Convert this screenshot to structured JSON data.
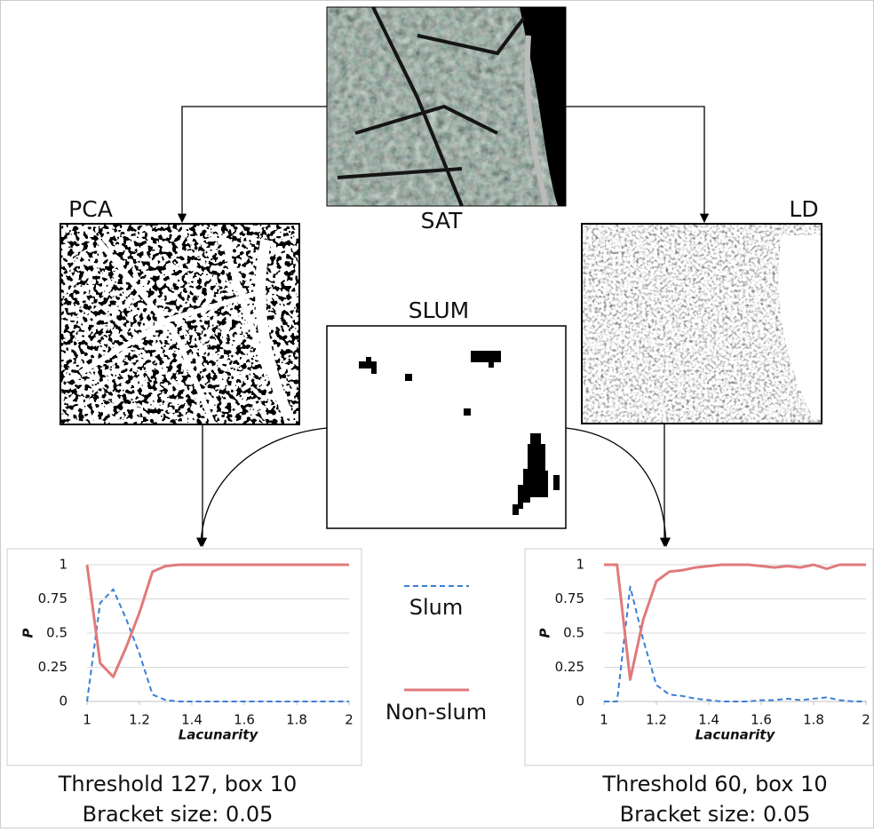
{
  "labels": {
    "sat": "SAT",
    "pca": "PCA",
    "ld": "LD",
    "slum": "SLUM"
  },
  "legend": [
    {
      "name": "Slum",
      "color": "#3a7fd5",
      "dashed": true
    },
    {
      "name": "Non-slum",
      "color": "#e07a7a",
      "dashed": false
    }
  ],
  "charts": [
    {
      "type": "line",
      "xlabel": "Lacunarity",
      "ylabel": "P",
      "caption": [
        "Threshold 127, box 10",
        "Bracket size: 0.05"
      ],
      "x": [
        1,
        1.05,
        1.1,
        1.15,
        1.2,
        1.25,
        1.3,
        1.35,
        1.4,
        1.45,
        1.5,
        1.55,
        1.6,
        1.65,
        1.7,
        1.75,
        1.8,
        1.85,
        1.9,
        1.95,
        2
      ],
      "xlim": [
        1,
        2
      ],
      "xticks": [
        1,
        1.2,
        1.4,
        1.6,
        1.8,
        2
      ],
      "ylim": [
        0,
        1
      ],
      "yticks": [
        0,
        0.25,
        0.5,
        0.75,
        1
      ],
      "grid": true,
      "series": [
        {
          "legend": 0,
          "values": [
            0,
            0.72,
            0.82,
            0.6,
            0.35,
            0.05,
            0.01,
            0,
            0,
            0,
            0,
            0,
            0,
            0,
            0,
            0,
            0,
            0,
            0,
            0,
            0
          ]
        },
        {
          "legend": 1,
          "values": [
            1,
            0.28,
            0.18,
            0.4,
            0.65,
            0.95,
            0.99,
            1,
            1,
            1,
            1,
            1,
            1,
            1,
            1,
            1,
            1,
            1,
            1,
            1,
            1
          ]
        }
      ]
    },
    {
      "type": "line",
      "xlabel": "Lacunarity",
      "ylabel": "P",
      "caption": [
        "Threshold 60, box 10",
        "Bracket size: 0.05"
      ],
      "x": [
        1,
        1.05,
        1.1,
        1.15,
        1.2,
        1.25,
        1.3,
        1.35,
        1.4,
        1.45,
        1.5,
        1.55,
        1.6,
        1.65,
        1.7,
        1.75,
        1.8,
        1.85,
        1.9,
        1.95,
        2
      ],
      "xlim": [
        1,
        2
      ],
      "xticks": [
        1,
        1.2,
        1.4,
        1.6,
        1.8,
        2
      ],
      "ylim": [
        0,
        1
      ],
      "yticks": [
        0,
        0.25,
        0.5,
        0.75,
        1
      ],
      "grid": true,
      "series": [
        {
          "legend": 0,
          "values": [
            0,
            0,
            0.84,
            0.45,
            0.12,
            0.05,
            0.04,
            0.02,
            0.01,
            0,
            0,
            0,
            0.01,
            0.01,
            0.02,
            0.01,
            0.02,
            0.03,
            0.01,
            0,
            0
          ]
        },
        {
          "legend": 1,
          "values": [
            1,
            1,
            0.16,
            0.6,
            0.88,
            0.95,
            0.96,
            0.98,
            0.99,
            1,
            1,
            1,
            0.99,
            0.98,
            0.99,
            0.98,
            1,
            0.97,
            1,
            1,
            1
          ]
        }
      ]
    }
  ]
}
